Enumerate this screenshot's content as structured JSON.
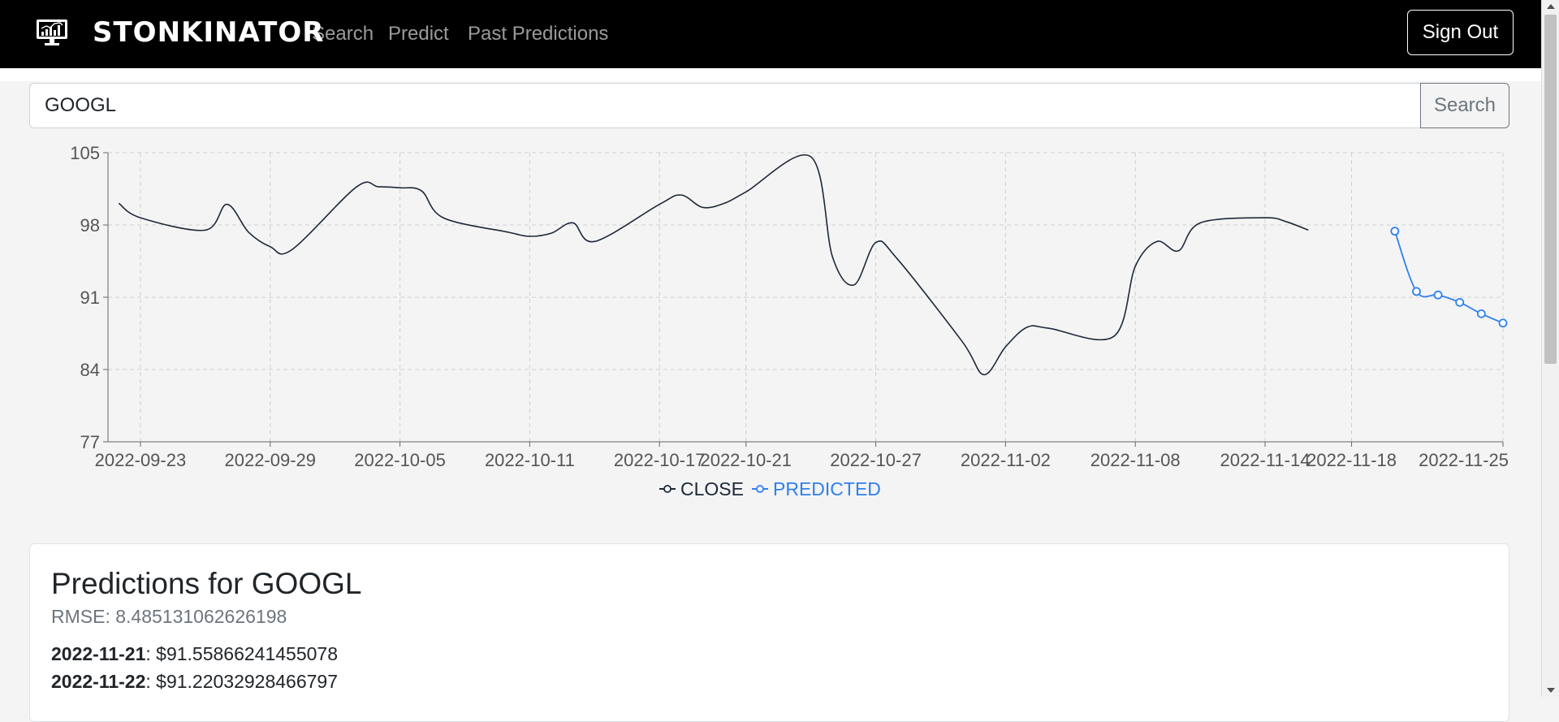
{
  "app": {
    "brand": "STONKINATOR",
    "brand_icon": "monitor-chart-icon",
    "nav": [
      {
        "label": "Search"
      },
      {
        "label": "Predict"
      },
      {
        "label": "Past Predictions"
      }
    ],
    "signout_label": "Sign Out"
  },
  "search": {
    "value": "GOOGL",
    "button_label": "Search"
  },
  "chart_data": {
    "type": "line",
    "x_ticks": [
      "2022-09-23",
      "2022-09-29",
      "2022-10-05",
      "2022-10-11",
      "2022-10-17",
      "2022-10-21",
      "2022-10-27",
      "2022-11-02",
      "2022-11-08",
      "2022-11-14",
      "2022-11-18",
      "2022-11-25"
    ],
    "y_ticks": [
      "105",
      "98",
      "91",
      "84",
      "77"
    ],
    "ylim": [
      77,
      105
    ],
    "grid": true,
    "legend_position": "bottom",
    "series": [
      {
        "name": "CLOSE",
        "color": "#1d2838",
        "points": [
          [
            "2022-09-22",
            100.1
          ],
          [
            "2022-09-23",
            98.7
          ],
          [
            "2022-09-26",
            97.5
          ],
          [
            "2022-09-27",
            100.0
          ],
          [
            "2022-09-28",
            97.3
          ],
          [
            "2022-09-29",
            95.9
          ],
          [
            "2022-09-30",
            95.6
          ],
          [
            "2022-10-03",
            101.7
          ],
          [
            "2022-10-04",
            101.7
          ],
          [
            "2022-10-05",
            101.6
          ],
          [
            "2022-10-06",
            101.3
          ],
          [
            "2022-10-07",
            98.7
          ],
          [
            "2022-10-10",
            97.3
          ],
          [
            "2022-10-11",
            96.9
          ],
          [
            "2022-10-12",
            97.2
          ],
          [
            "2022-10-13",
            98.2
          ],
          [
            "2022-10-14",
            96.4
          ],
          [
            "2022-10-17",
            100.0
          ],
          [
            "2022-10-18",
            100.9
          ],
          [
            "2022-10-19",
            99.7
          ],
          [
            "2022-10-20",
            100.1
          ],
          [
            "2022-10-21",
            101.2
          ],
          [
            "2022-10-24",
            104.6
          ],
          [
            "2022-10-25",
            94.9
          ],
          [
            "2022-10-26",
            92.2
          ],
          [
            "2022-10-27",
            96.3
          ],
          [
            "2022-10-28",
            94.7
          ],
          [
            "2022-10-31",
            86.7
          ],
          [
            "2022-11-01",
            83.5
          ],
          [
            "2022-11-02",
            86.2
          ],
          [
            "2022-11-03",
            88.1
          ],
          [
            "2022-11-04",
            88.0
          ],
          [
            "2022-11-07",
            87.2
          ],
          [
            "2022-11-08",
            94.0
          ],
          [
            "2022-11-09",
            96.4
          ],
          [
            "2022-11-10",
            95.5
          ],
          [
            "2022-11-11",
            98.2
          ],
          [
            "2022-11-14",
            98.7
          ],
          [
            "2022-11-15",
            98.3
          ],
          [
            "2022-11-16",
            97.5
          ]
        ]
      },
      {
        "name": "PREDICTED",
        "color": "#2f80ed",
        "points": [
          [
            "2022-11-20",
            97.4
          ],
          [
            "2022-11-21",
            91.56
          ],
          [
            "2022-11-22",
            91.22
          ],
          [
            "2022-11-23",
            90.5
          ],
          [
            "2022-11-24",
            89.4
          ],
          [
            "2022-11-25",
            88.5
          ]
        ]
      }
    ]
  },
  "predictions": {
    "title": "Predictions for GOOGL",
    "rmse": "RMSE: 8.485131062626198",
    "rows": [
      {
        "date": "2022-11-21",
        "value": ": $91.55866241455078"
      },
      {
        "date": "2022-11-22",
        "value": ": $91.22032928466797"
      }
    ]
  }
}
